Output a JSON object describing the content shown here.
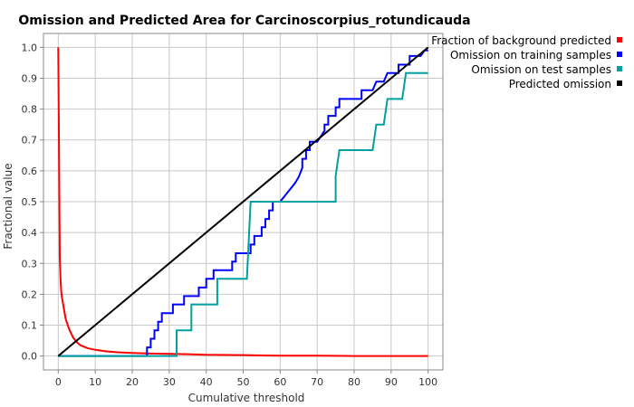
{
  "chart_data": {
    "type": "line",
    "title": "Omission and Predicted Area for Carcinoscorpius_rotundicauda",
    "xlabel": "Cumulative threshold",
    "ylabel": "Fractional value",
    "xlim": [
      0,
      100
    ],
    "ylim": [
      0,
      1.0
    ],
    "x_ticks": [
      "0",
      "10",
      "20",
      "30",
      "40",
      "50",
      "60",
      "70",
      "80",
      "90",
      "100"
    ],
    "y_ticks": [
      "0.0",
      "0.1",
      "0.2",
      "0.3",
      "0.4",
      "0.5",
      "0.6",
      "0.7",
      "0.8",
      "0.9",
      "1.0"
    ],
    "grid": true,
    "legend_position": "top-right outside",
    "series": [
      {
        "name": "Fraction of background predicted",
        "color": "#ff0000",
        "points": [
          [
            0,
            1.0
          ],
          [
            0.2,
            0.65
          ],
          [
            0.4,
            0.32
          ],
          [
            0.6,
            0.25
          ],
          [
            0.8,
            0.21
          ],
          [
            1,
            0.19
          ],
          [
            2,
            0.12
          ],
          [
            3,
            0.085
          ],
          [
            4,
            0.06
          ],
          [
            5,
            0.045
          ],
          [
            6,
            0.035
          ],
          [
            8,
            0.025
          ],
          [
            10,
            0.02
          ],
          [
            13,
            0.015
          ],
          [
            16,
            0.012
          ],
          [
            20,
            0.01
          ],
          [
            25,
            0.008
          ],
          [
            30,
            0.007
          ],
          [
            35,
            0.006
          ],
          [
            40,
            0.004
          ],
          [
            50,
            0.003
          ],
          [
            55,
            0.002
          ],
          [
            60,
            0.001
          ],
          [
            70,
            0.001
          ],
          [
            80,
            0.0
          ],
          [
            100,
            0.0
          ]
        ]
      },
      {
        "name": "Omission on training samples",
        "color": "#0000ff",
        "points": [
          [
            0,
            0
          ],
          [
            24,
            0
          ],
          [
            24,
            0.028
          ],
          [
            25,
            0.028
          ],
          [
            25,
            0.056
          ],
          [
            26,
            0.056
          ],
          [
            26,
            0.083
          ],
          [
            27,
            0.083
          ],
          [
            27,
            0.111
          ],
          [
            28,
            0.111
          ],
          [
            28,
            0.139
          ],
          [
            31,
            0.139
          ],
          [
            31,
            0.167
          ],
          [
            34,
            0.167
          ],
          [
            34,
            0.194
          ],
          [
            38,
            0.194
          ],
          [
            38,
            0.222
          ],
          [
            40,
            0.222
          ],
          [
            40,
            0.25
          ],
          [
            42,
            0.25
          ],
          [
            42,
            0.278
          ],
          [
            47,
            0.278
          ],
          [
            47,
            0.306
          ],
          [
            48,
            0.306
          ],
          [
            48,
            0.333
          ],
          [
            52,
            0.333
          ],
          [
            52,
            0.361
          ],
          [
            53,
            0.361
          ],
          [
            53,
            0.389
          ],
          [
            55,
            0.389
          ],
          [
            55,
            0.417
          ],
          [
            56,
            0.417
          ],
          [
            56,
            0.444
          ],
          [
            57,
            0.444
          ],
          [
            57,
            0.472
          ],
          [
            58,
            0.472
          ],
          [
            58,
            0.5
          ],
          [
            60,
            0.5
          ],
          [
            62,
            0.53
          ],
          [
            64,
            0.56
          ],
          [
            65,
            0.58
          ],
          [
            66,
            0.61
          ],
          [
            66,
            0.639
          ],
          [
            67,
            0.639
          ],
          [
            67,
            0.667
          ],
          [
            68,
            0.667
          ],
          [
            68,
            0.694
          ],
          [
            70,
            0.694
          ],
          [
            72,
            0.73
          ],
          [
            72,
            0.75
          ],
          [
            73,
            0.75
          ],
          [
            73,
            0.778
          ],
          [
            75,
            0.778
          ],
          [
            75,
            0.806
          ],
          [
            76,
            0.806
          ],
          [
            76,
            0.833
          ],
          [
            78,
            0.833
          ],
          [
            80,
            0.833
          ],
          [
            82,
            0.833
          ],
          [
            82,
            0.861
          ],
          [
            85,
            0.861
          ],
          [
            86,
            0.889
          ],
          [
            88,
            0.889
          ],
          [
            89,
            0.917
          ],
          [
            92,
            0.917
          ],
          [
            92,
            0.944
          ],
          [
            95,
            0.944
          ],
          [
            95,
            0.972
          ],
          [
            98,
            0.972
          ],
          [
            99,
            0.99
          ],
          [
            100,
            0.99
          ]
        ]
      },
      {
        "name": "Omission on test samples",
        "color": "#00a0a0",
        "points": [
          [
            0,
            0
          ],
          [
            32,
            0
          ],
          [
            32,
            0.083
          ],
          [
            36,
            0.083
          ],
          [
            36,
            0.167
          ],
          [
            43,
            0.167
          ],
          [
            43,
            0.25
          ],
          [
            51,
            0.25
          ],
          [
            52,
            0.5
          ],
          [
            75,
            0.5
          ],
          [
            75,
            0.583
          ],
          [
            76,
            0.667
          ],
          [
            85,
            0.667
          ],
          [
            86,
            0.75
          ],
          [
            88,
            0.75
          ],
          [
            89,
            0.833
          ],
          [
            93,
            0.833
          ],
          [
            94,
            0.917
          ],
          [
            100,
            0.917
          ]
        ]
      },
      {
        "name": "Predicted omission",
        "color": "#000000",
        "points": [
          [
            0,
            0
          ],
          [
            100,
            1.0
          ]
        ]
      }
    ]
  }
}
